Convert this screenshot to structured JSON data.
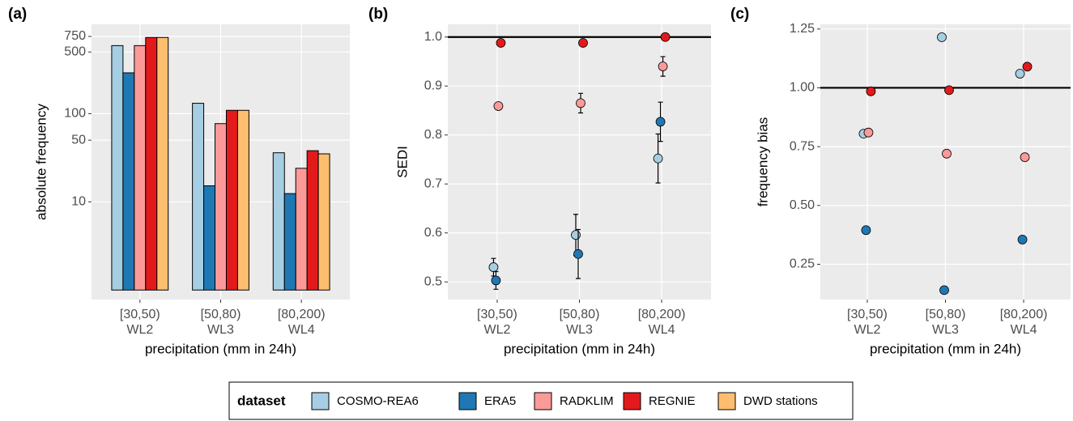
{
  "legend_title": "dataset",
  "chart_data": [
    {
      "type": "bar",
      "panel_label": "(a)",
      "y_label": "absolute frequency",
      "x_label": "precipitation (mm in 24h)",
      "categories": [
        "[30,50)",
        "[50,80)",
        "[80,200)"
      ],
      "category_sublabels": [
        "WL2",
        "WL3",
        "WL4"
      ],
      "log_y": true,
      "ylim": [
        0.78,
        1030
      ],
      "yticks": [
        10,
        50,
        100,
        500,
        750
      ],
      "grid": true,
      "series": [
        {
          "name": "COSMO-REA6",
          "color": "#a6cee3",
          "values": [
            590,
            131,
            36
          ]
        },
        {
          "name": "ERA5",
          "color": "#1f78b4",
          "values": [
            290,
            15.2,
            12.4
          ]
        },
        {
          "name": "RADKLIM",
          "color": "#fb9a99",
          "values": [
            590,
            77,
            24
          ]
        },
        {
          "name": "REGNIE",
          "color": "#e31a1c",
          "values": [
            730,
            109,
            38
          ]
        },
        {
          "name": "DWD stations",
          "color": "#fdbf6f",
          "values": [
            730,
            109,
            35
          ]
        }
      ]
    },
    {
      "type": "point",
      "panel_label": "(b)",
      "y_label": "SEDI",
      "x_label": "precipitation (mm in 24h)",
      "categories": [
        "[30,50)",
        "[50,80)",
        "[80,200)"
      ],
      "category_sublabels": [
        "WL2",
        "WL3",
        "WL4"
      ],
      "ylim": [
        0.464,
        1.026
      ],
      "yticks": [
        0.5,
        0.6,
        0.7,
        0.8,
        0.9,
        {
          "value": 1,
          "label": "1.0"
        }
      ],
      "grid": true,
      "reference_line": 1,
      "series": [
        {
          "name": "COSMO-REA6",
          "color": "#a6cee3",
          "values": [
            0.53,
            0.596,
            0.752
          ],
          "errors": [
            0.018,
            0.042,
            0.05
          ]
        },
        {
          "name": "ERA5",
          "color": "#1f78b4",
          "values": [
            0.503,
            0.557,
            0.827
          ],
          "errors": [
            0.018,
            0.05,
            0.04
          ]
        },
        {
          "name": "RADKLIM",
          "color": "#fb9a99",
          "values": [
            0.859,
            0.865,
            0.94
          ],
          "errors": [
            0.005,
            0.02,
            0.02
          ]
        },
        {
          "name": "REGNIE",
          "color": "#e31a1c",
          "values": [
            0.988,
            0.988,
            1.0
          ],
          "errors": [
            null,
            null,
            null
          ]
        }
      ]
    },
    {
      "type": "point",
      "panel_label": "(c)",
      "y_label": "frequency bias",
      "x_label": "precipitation (mm in 24h)",
      "categories": [
        "[30,50)",
        "[50,80)",
        "[80,200)"
      ],
      "category_sublabels": [
        "WL2",
        "WL3",
        "WL4"
      ],
      "ylim": [
        0.1,
        1.27
      ],
      "yticks": [
        0.25,
        {
          "value": 0.5,
          "label": "0.50"
        },
        0.75,
        {
          "value": 1,
          "label": "1.00"
        },
        1.25
      ],
      "grid": true,
      "reference_line": 1,
      "series": [
        {
          "name": "COSMO-REA6",
          "color": "#a6cee3",
          "values": [
            0.805,
            1.215,
            1.06
          ]
        },
        {
          "name": "ERA5",
          "color": "#1f78b4",
          "values": [
            0.395,
            0.14,
            0.355
          ]
        },
        {
          "name": "RADKLIM",
          "color": "#fb9a99",
          "values": [
            0.81,
            0.72,
            0.705
          ]
        },
        {
          "name": "REGNIE",
          "color": "#e31a1c",
          "values": [
            0.985,
            0.99,
            1.09
          ]
        }
      ]
    }
  ]
}
